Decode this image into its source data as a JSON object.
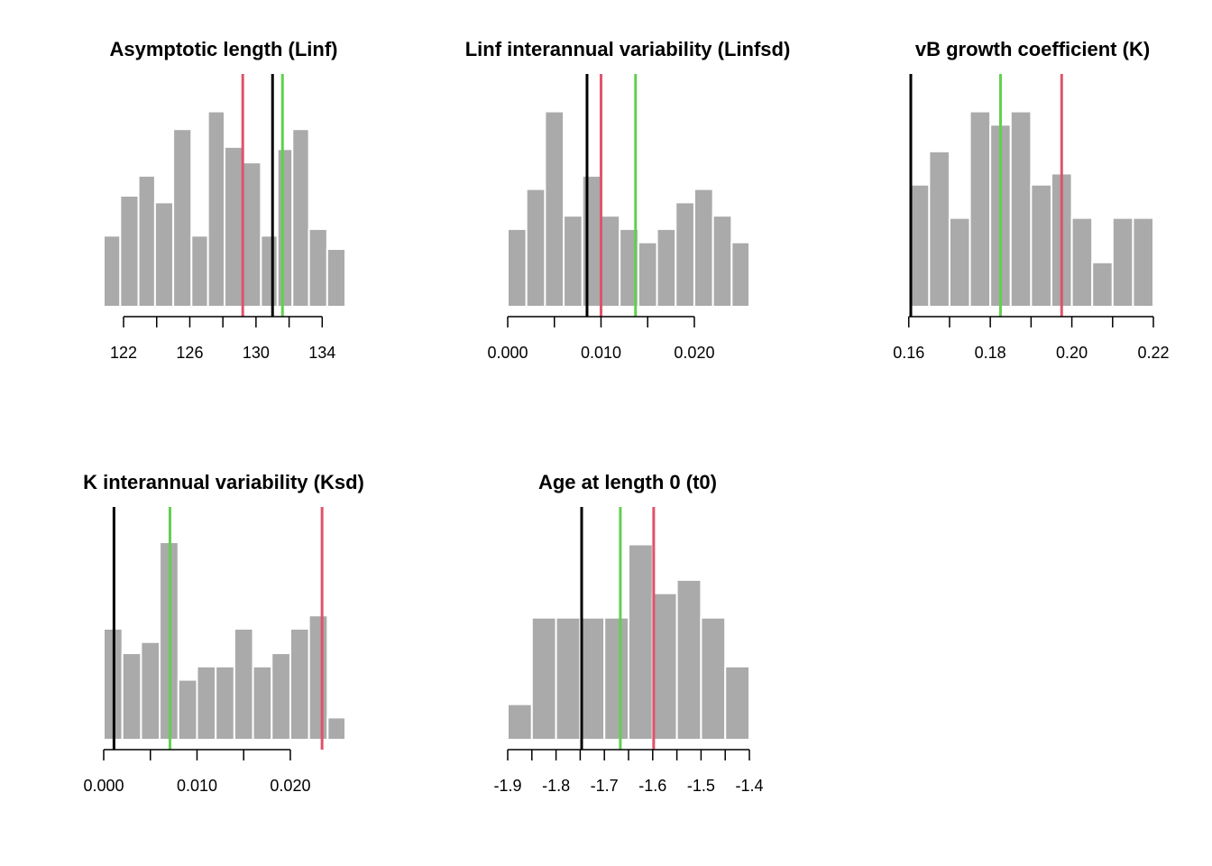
{
  "colors": {
    "bar": "#aaaaaa",
    "bar_edge": "#ffffff",
    "line_black": "#000000",
    "line_red": "#df536b",
    "line_green": "#61d04f"
  },
  "chart_data": [
    {
      "type": "bar",
      "subtype": "histogram",
      "title": "Asymptotic length (Linf)",
      "xlim": [
        120.8,
        135.4
      ],
      "ylim": [
        0,
        1
      ],
      "ticks": [
        122,
        126,
        130,
        134
      ],
      "tick_labels": [
        "122",
        "126",
        "130",
        "134"
      ],
      "bins": [
        [
          120.8,
          121.8
        ],
        [
          121.8,
          122.9
        ],
        [
          122.9,
          123.9
        ],
        [
          123.9,
          125.0
        ],
        [
          125.0,
          126.1
        ],
        [
          126.1,
          127.1
        ],
        [
          127.1,
          128.1
        ],
        [
          128.1,
          129.2
        ],
        [
          129.2,
          130.3
        ],
        [
          130.3,
          131.3
        ],
        [
          131.3,
          132.2
        ],
        [
          132.2,
          133.2
        ],
        [
          133.2,
          134.3
        ],
        [
          134.3,
          135.4
        ]
      ],
      "values": [
        0.32,
        0.5,
        0.59,
        0.47,
        0.8,
        0.32,
        0.88,
        0.72,
        0.65,
        0.32,
        0.71,
        0.8,
        0.35,
        0.26
      ],
      "lines": [
        {
          "color": "red",
          "x": 129.2
        },
        {
          "color": "black",
          "x": 131.0
        },
        {
          "color": "green",
          "x": 131.6
        }
      ]
    },
    {
      "type": "bar",
      "subtype": "histogram",
      "title": "Linf interannual variability (Linfsd)",
      "xlim": [
        0,
        0.0259
      ],
      "ylim": [
        0,
        1
      ],
      "ticks": [
        0,
        0.01,
        0.02
      ],
      "tick_labels": [
        "0.000",
        "0.010",
        "0.020"
      ],
      "bins": [
        [
          0,
          0.002
        ],
        [
          0.002,
          0.004
        ],
        [
          0.004,
          0.006
        ],
        [
          0.006,
          0.008
        ],
        [
          0.008,
          0.01
        ],
        [
          0.01,
          0.012
        ],
        [
          0.012,
          0.014
        ],
        [
          0.014,
          0.016
        ],
        [
          0.016,
          0.018
        ],
        [
          0.018,
          0.02
        ],
        [
          0.02,
          0.022
        ],
        [
          0.022,
          0.024
        ],
        [
          0.024,
          0.0259
        ]
      ],
      "values": [
        0.35,
        0.53,
        0.88,
        0.41,
        0.59,
        0.41,
        0.35,
        0.29,
        0.35,
        0.47,
        0.53,
        0.41,
        0.29
      ],
      "lines": [
        {
          "color": "black",
          "x": 0.0085
        },
        {
          "color": "red",
          "x": 0.01
        },
        {
          "color": "green",
          "x": 0.0137
        }
      ]
    },
    {
      "type": "bar",
      "subtype": "histogram",
      "title": "vB growth coefficient (K)",
      "xlim": [
        0.1605,
        0.22
      ],
      "ylim": [
        0,
        1
      ],
      "ticks": [
        0.16,
        0.18,
        0.2,
        0.22
      ],
      "tick_labels": [
        "0.16",
        "0.18",
        "0.20",
        "0.22"
      ],
      "bins": [
        [
          0.1605,
          0.165
        ],
        [
          0.165,
          0.17
        ],
        [
          0.17,
          0.175
        ],
        [
          0.175,
          0.18
        ],
        [
          0.18,
          0.185
        ],
        [
          0.185,
          0.19
        ],
        [
          0.19,
          0.195
        ],
        [
          0.195,
          0.2
        ],
        [
          0.2,
          0.205
        ],
        [
          0.205,
          0.21
        ],
        [
          0.21,
          0.215
        ],
        [
          0.215,
          0.22
        ]
      ],
      "values": [
        0.55,
        0.7,
        0.4,
        0.88,
        0.82,
        0.88,
        0.55,
        0.6,
        0.4,
        0.2,
        0.4,
        0.4
      ],
      "lines": [
        {
          "color": "black",
          "x": 0.1605
        },
        {
          "color": "green",
          "x": 0.1825
        },
        {
          "color": "red",
          "x": 0.1975
        }
      ]
    },
    {
      "type": "bar",
      "subtype": "histogram",
      "title": "K interannual variability (Ksd)",
      "xlim": [
        0,
        0.0259
      ],
      "ylim": [
        0,
        1
      ],
      "ticks": [
        0,
        0.01,
        0.02
      ],
      "tick_labels": [
        "0.000",
        "0.010",
        "0.020"
      ],
      "bins": [
        [
          0,
          0.002
        ],
        [
          0.002,
          0.004
        ],
        [
          0.004,
          0.006
        ],
        [
          0.006,
          0.008
        ],
        [
          0.008,
          0.01
        ],
        [
          0.01,
          0.012
        ],
        [
          0.012,
          0.014
        ],
        [
          0.014,
          0.016
        ],
        [
          0.016,
          0.018
        ],
        [
          0.018,
          0.02
        ],
        [
          0.02,
          0.022
        ],
        [
          0.022,
          0.024
        ],
        [
          0.024,
          0.0259
        ]
      ],
      "values": [
        0.5,
        0.39,
        0.44,
        0.89,
        0.27,
        0.33,
        0.33,
        0.5,
        0.33,
        0.39,
        0.5,
        0.56,
        0.1
      ],
      "lines": [
        {
          "color": "black",
          "x": 0.0011
        },
        {
          "color": "green",
          "x": 0.0071
        },
        {
          "color": "red",
          "x": 0.0234
        }
      ]
    },
    {
      "type": "bar",
      "subtype": "histogram",
      "title": "Age at length 0 (t0)",
      "xlim": [
        -1.9,
        -1.4
      ],
      "ylim": [
        0,
        1
      ],
      "ticks": [
        -1.9,
        -1.8,
        -1.7,
        -1.6,
        -1.5,
        -1.4
      ],
      "tick_labels": [
        "-1.9",
        "-1.8",
        "-1.7",
        "-1.6",
        "-1.5",
        "-1.4"
      ],
      "bins": [
        [
          -1.9,
          -1.85
        ],
        [
          -1.85,
          -1.8
        ],
        [
          -1.8,
          -1.75
        ],
        [
          -1.75,
          -1.7
        ],
        [
          -1.7,
          -1.65
        ],
        [
          -1.65,
          -1.6
        ],
        [
          -1.6,
          -1.55
        ],
        [
          -1.55,
          -1.5
        ],
        [
          -1.5,
          -1.45
        ],
        [
          -1.45,
          -1.4
        ]
      ],
      "values": [
        0.16,
        0.55,
        0.55,
        0.55,
        0.55,
        0.88,
        0.66,
        0.72,
        0.55,
        0.33
      ],
      "lines": [
        {
          "color": "black",
          "x": -1.747
        },
        {
          "color": "green",
          "x": -1.667
        },
        {
          "color": "red",
          "x": -1.598
        }
      ]
    }
  ]
}
